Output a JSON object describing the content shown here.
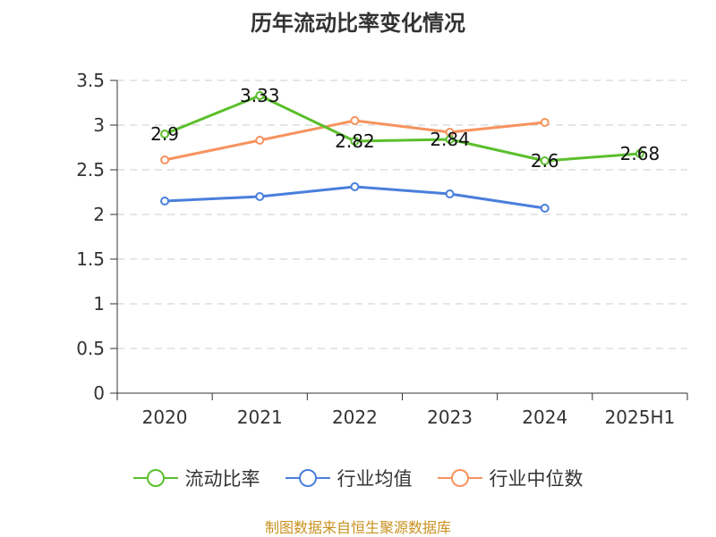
{
  "chart_data": {
    "type": "line",
    "title": "历年流动比率变化情况",
    "categories": [
      "2020",
      "2021",
      "2022",
      "2023",
      "2024",
      "2025H1"
    ],
    "ylim": [
      0,
      3.5
    ],
    "y_ticks": [
      "0",
      "0.5",
      "1",
      "1.5",
      "2",
      "2.5",
      "3",
      "3.5"
    ],
    "grid": true,
    "legend_position": "bottom",
    "series": [
      {
        "name": "流动比率",
        "color": "#5bbf2c",
        "values": [
          2.9,
          3.33,
          2.82,
          2.84,
          2.6,
          2.68
        ],
        "labels": [
          "2.9",
          "3.33",
          "2.82",
          "2.84",
          "2.6",
          "2.68"
        ]
      },
      {
        "name": "行业均值",
        "color": "#4a7fdc",
        "values": [
          2.15,
          2.2,
          2.31,
          2.23,
          2.07,
          null
        ],
        "labels": []
      },
      {
        "name": "行业中位数",
        "color": "#f6935e",
        "values": [
          2.61,
          2.83,
          3.05,
          2.92,
          3.03,
          null
        ],
        "labels": []
      }
    ]
  },
  "footer": {
    "source": "制图数据来自恒生聚源数据库"
  }
}
